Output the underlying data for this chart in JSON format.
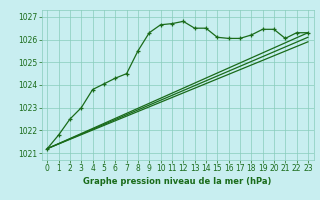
{
  "title": "Graphe pression niveau de la mer (hPa)",
  "background_color": "#c8eef0",
  "grid_color": "#88ccbb",
  "line_color": "#1a6b1a",
  "xlim": [
    -0.5,
    23.5
  ],
  "ylim": [
    1020.7,
    1027.3
  ],
  "yticks": [
    1021,
    1022,
    1023,
    1024,
    1025,
    1026,
    1027
  ],
  "xticks": [
    0,
    1,
    2,
    3,
    4,
    5,
    6,
    7,
    8,
    9,
    10,
    11,
    12,
    13,
    14,
    15,
    16,
    17,
    18,
    19,
    20,
    21,
    22,
    23
  ],
  "series1_x": [
    0,
    1,
    2,
    3,
    4,
    5,
    6,
    7,
    8,
    9,
    10,
    11,
    12,
    13,
    14,
    15,
    16,
    17,
    18,
    19,
    20,
    21,
    22,
    23
  ],
  "series1_y": [
    1021.2,
    1021.8,
    1022.5,
    1023.0,
    1023.8,
    1024.05,
    1024.3,
    1024.5,
    1025.5,
    1026.3,
    1026.65,
    1026.7,
    1026.8,
    1026.5,
    1026.5,
    1026.1,
    1026.05,
    1026.05,
    1026.2,
    1026.45,
    1026.45,
    1026.05,
    1026.3,
    1026.3
  ],
  "series2_x": [
    0,
    23
  ],
  "series2_y": [
    1021.2,
    1026.3
  ],
  "series3_x": [
    0,
    23
  ],
  "series3_y": [
    1021.2,
    1026.1
  ],
  "series4_x": [
    0,
    23
  ],
  "series4_y": [
    1021.2,
    1025.9
  ],
  "tick_fontsize": 5.5,
  "xlabel_fontsize": 6.0,
  "line_width": 0.9,
  "marker_size": 3.0
}
